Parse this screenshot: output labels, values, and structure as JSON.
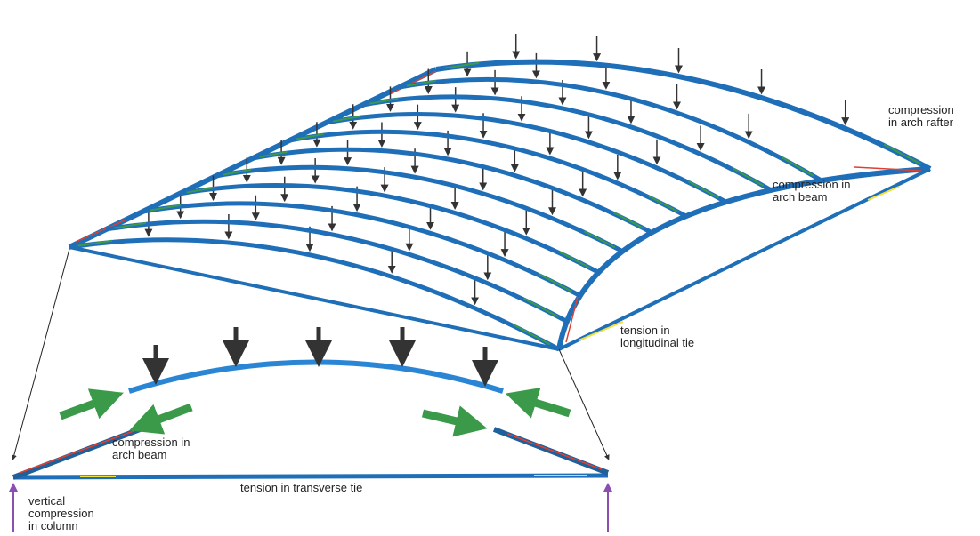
{
  "labels": [
    {
      "lines": [
        "compression",
        "in arch rafter"
      ]
    },
    {
      "lines": [
        "compression in",
        "arch beam"
      ]
    },
    {
      "lines": [
        "tension in",
        "longitudinal tie"
      ]
    },
    {
      "lines": [
        "compression in",
        "arch beam"
      ]
    },
    {
      "lines": [
        "tension in transverse tie"
      ]
    },
    {
      "lines": [
        "vertical",
        "compression",
        "in column"
      ]
    }
  ]
}
